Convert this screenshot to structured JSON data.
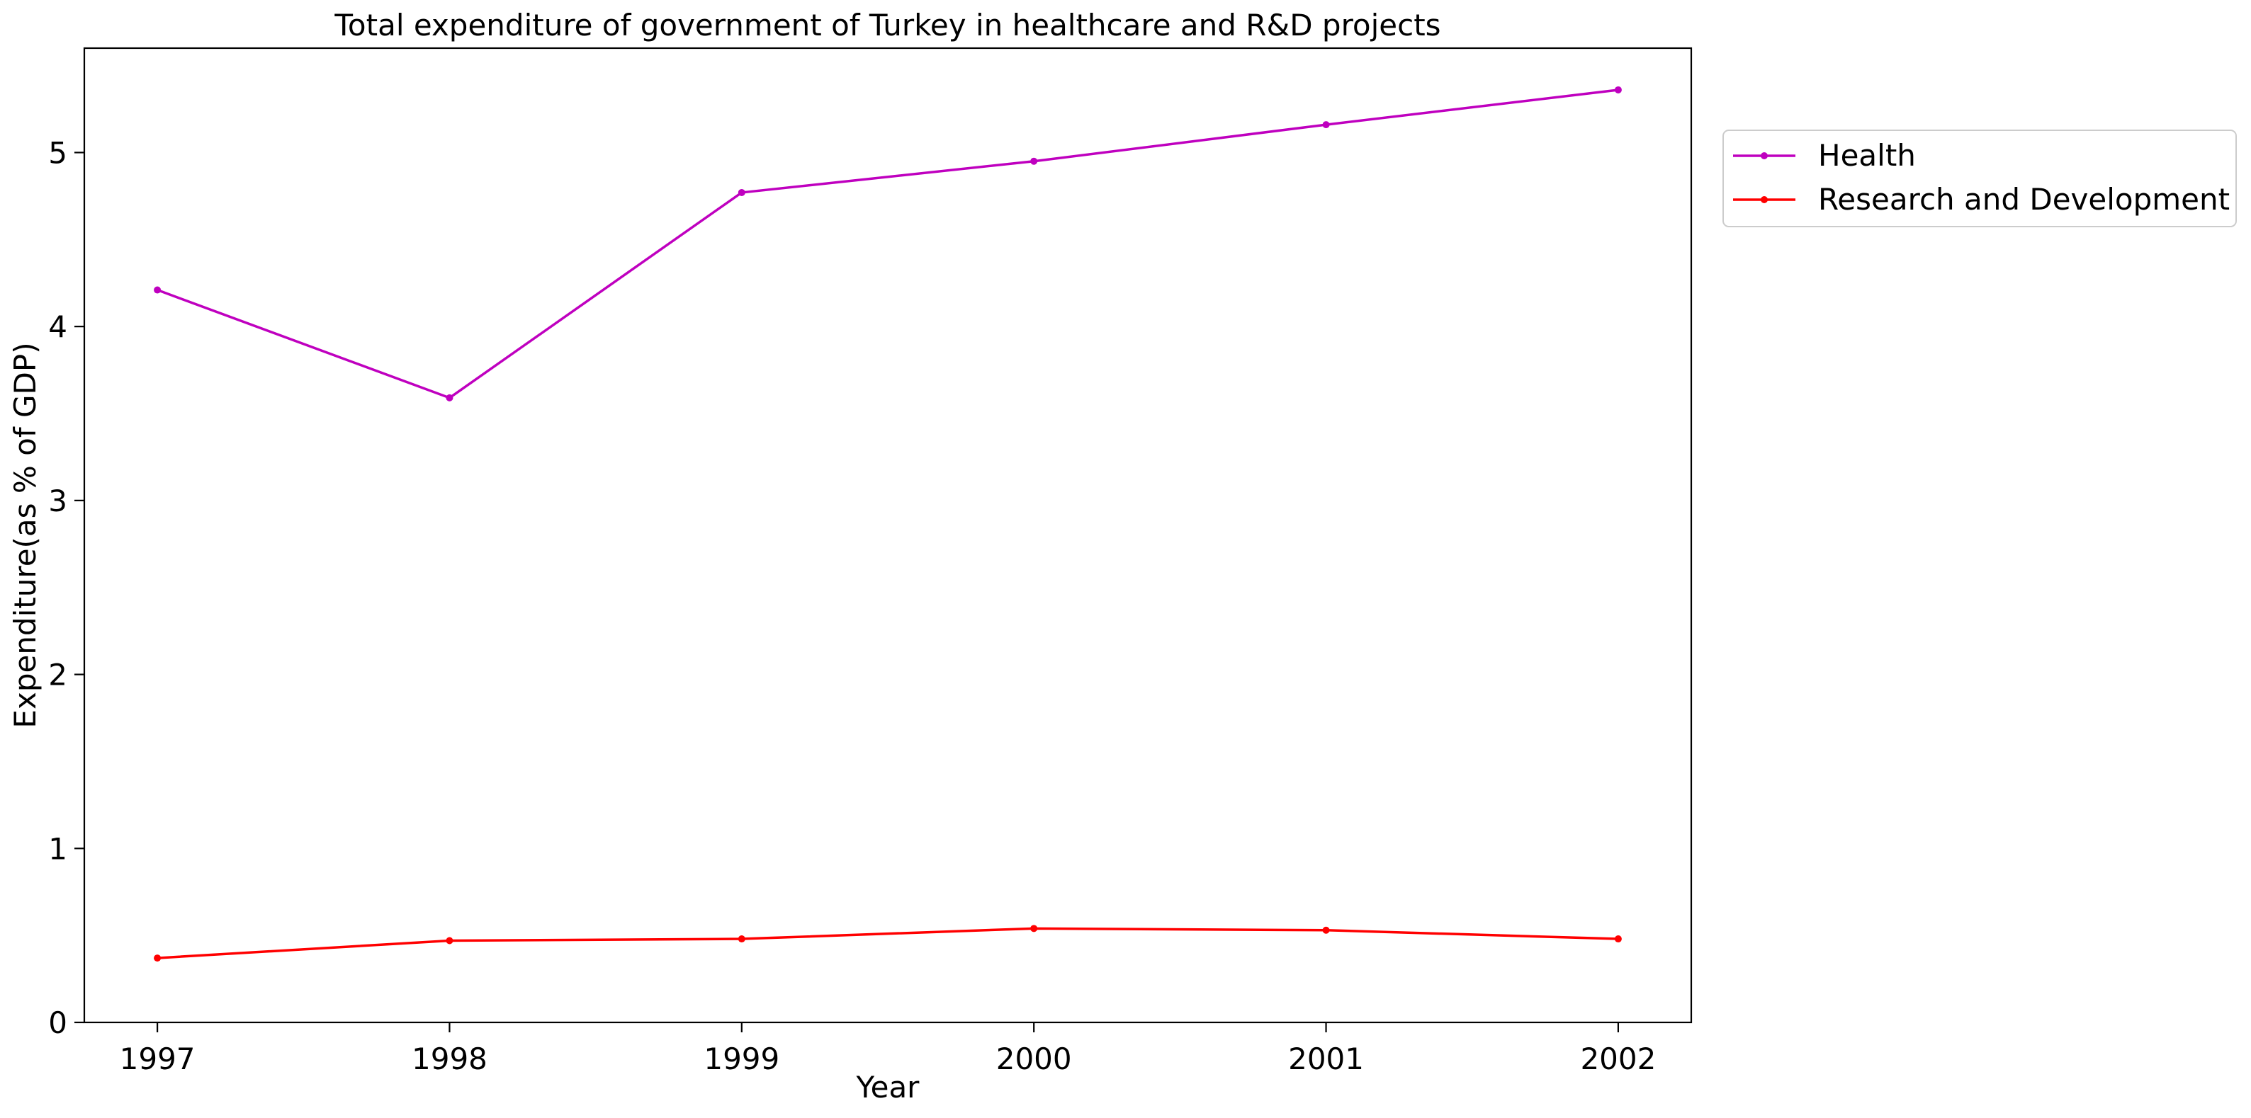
{
  "chart_data": {
    "type": "line",
    "title": "Total expenditure of government of Turkey in healthcare and R&D projects",
    "xlabel": "Year",
    "ylabel": "Expenditure(as % of GDP)",
    "x": [
      1997,
      1998,
      1999,
      2000,
      2001,
      2002
    ],
    "xlim": [
      1996.75,
      2002.25
    ],
    "ylim": [
      0,
      5.6
    ],
    "yticks": [
      0,
      1,
      2,
      3,
      4,
      5
    ],
    "grid": false,
    "legend_position": "outside-right-top",
    "series": [
      {
        "name": "Health",
        "color": "#bf00bf",
        "values": [
          4.21,
          3.59,
          4.77,
          4.95,
          5.16,
          5.36
        ]
      },
      {
        "name": "Research and Development",
        "color": "#ff0000",
        "values": [
          0.37,
          0.47,
          0.48,
          0.54,
          0.53,
          0.48
        ]
      }
    ]
  }
}
